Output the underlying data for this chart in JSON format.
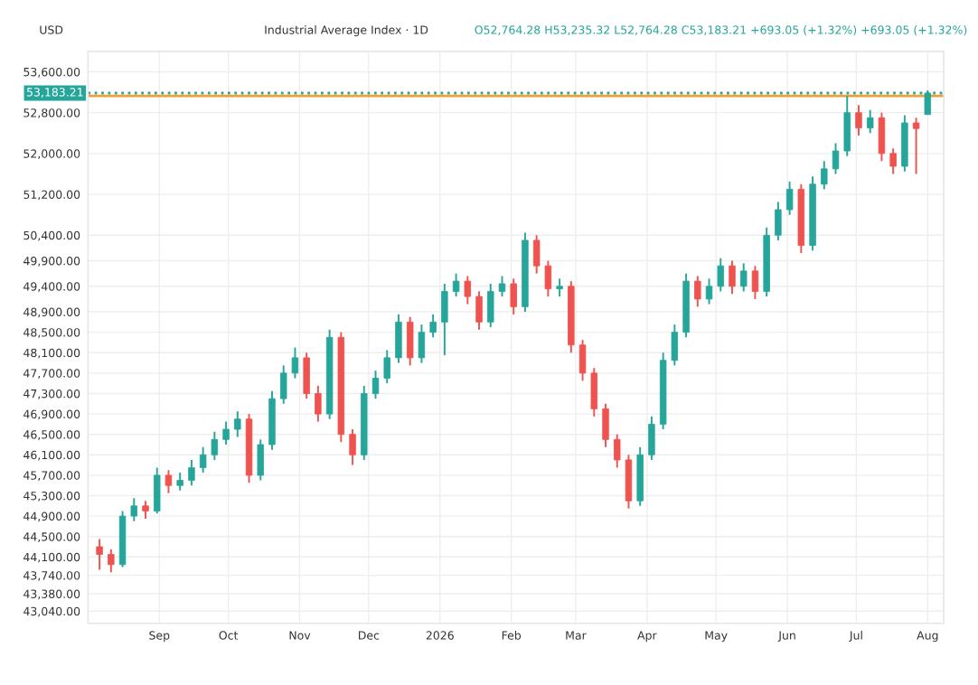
{
  "chart_data": {
    "type": "candlestick",
    "title": "Industrial Average Index · 1D",
    "subtitle": "O52,764.28 H53,235.32 L52,764.28 C53,183.21 +693.05 (+1.32%) +693.05 (+1.32%)",
    "annotations": [
      "USD"
    ],
    "x": [
      "2025-08-06",
      "2025-08-11",
      "2025-08-16",
      "2025-08-21",
      "2025-08-26",
      "2025-08-31",
      "2025-09-05",
      "2025-09-10",
      "2025-09-15",
      "2025-09-20",
      "2025-09-25",
      "2025-09-30",
      "2025-10-05",
      "2025-10-10",
      "2025-10-15",
      "2025-10-20",
      "2025-10-25",
      "2025-10-30",
      "2025-11-04",
      "2025-11-09",
      "2025-11-14",
      "2025-11-19",
      "2025-11-24",
      "2025-11-29",
      "2025-12-04",
      "2025-12-09",
      "2025-12-14",
      "2025-12-19",
      "2025-12-24",
      "2025-12-29",
      "2026-01-03",
      "2026-01-08",
      "2026-01-13",
      "2026-01-18",
      "2026-01-23",
      "2026-01-28",
      "2026-02-02",
      "2026-02-07",
      "2026-02-12",
      "2026-02-17",
      "2026-02-22",
      "2026-02-27",
      "2026-03-04",
      "2026-03-09",
      "2026-03-14",
      "2026-03-19",
      "2026-03-24",
      "2026-03-29",
      "2026-04-03",
      "2026-04-08",
      "2026-04-13",
      "2026-04-18",
      "2026-04-23",
      "2026-04-28",
      "2026-05-03",
      "2026-05-08",
      "2026-05-13",
      "2026-05-18",
      "2026-05-23",
      "2026-05-28",
      "2026-06-02",
      "2026-06-07",
      "2026-06-12",
      "2026-06-17",
      "2026-06-22",
      "2026-06-27",
      "2026-07-02",
      "2026-07-07",
      "2026-07-12",
      "2026-07-17",
      "2026-07-22",
      "2026-07-27",
      "2026-08-01"
    ],
    "ohlc": [
      [
        44300,
        44450,
        43850,
        44150
      ],
      [
        44150,
        44250,
        43800,
        43950
      ],
      [
        43950,
        45000,
        43900,
        44900
      ],
      [
        44900,
        45250,
        44800,
        45100
      ],
      [
        45100,
        45200,
        44850,
        45000
      ],
      [
        45000,
        45850,
        44950,
        45700
      ],
      [
        45700,
        45800,
        45350,
        45500
      ],
      [
        45500,
        45750,
        45400,
        45600
      ],
      [
        45600,
        46000,
        45500,
        45850
      ],
      [
        45850,
        46250,
        45750,
        46100
      ],
      [
        46100,
        46550,
        46000,
        46400
      ],
      [
        46400,
        46750,
        46300,
        46600
      ],
      [
        46600,
        46950,
        46450,
        46800
      ],
      [
        46800,
        46900,
        45550,
        45700
      ],
      [
        45700,
        46400,
        45600,
        46300
      ],
      [
        46300,
        47350,
        46200,
        47200
      ],
      [
        47200,
        47850,
        47100,
        47700
      ],
      [
        47700,
        48200,
        47600,
        48000
      ],
      [
        48000,
        48100,
        47200,
        47300
      ],
      [
        47300,
        47450,
        46750,
        46900
      ],
      [
        46900,
        48550,
        46800,
        48400
      ],
      [
        48400,
        48500,
        46350,
        46500
      ],
      [
        46500,
        46600,
        45900,
        46100
      ],
      [
        46100,
        47450,
        46000,
        47300
      ],
      [
        47300,
        47750,
        47200,
        47600
      ],
      [
        47600,
        48150,
        47500,
        48000
      ],
      [
        48000,
        48850,
        47900,
        48700
      ],
      [
        48700,
        48800,
        47850,
        48000
      ],
      [
        48000,
        48650,
        47900,
        48500
      ],
      [
        48500,
        48850,
        48400,
        48700
      ],
      [
        48700,
        49450,
        48050,
        49300
      ],
      [
        49300,
        49650,
        49200,
        49500
      ],
      [
        49500,
        49600,
        49050,
        49200
      ],
      [
        49200,
        49300,
        48550,
        48700
      ],
      [
        48700,
        49450,
        48600,
        49300
      ],
      [
        49300,
        49600,
        49200,
        49450
      ],
      [
        49450,
        49550,
        48850,
        49000
      ],
      [
        49000,
        50450,
        48900,
        50300
      ],
      [
        50300,
        50400,
        49650,
        49800
      ],
      [
        49800,
        49900,
        49200,
        49350
      ],
      [
        49350,
        49550,
        49200,
        49400
      ],
      [
        49400,
        49500,
        48100,
        48250
      ],
      [
        48250,
        48350,
        47550,
        47700
      ],
      [
        47700,
        47800,
        46850,
        47000
      ],
      [
        47000,
        47100,
        46250,
        46400
      ],
      [
        46400,
        46500,
        45850,
        46000
      ],
      [
        46000,
        46100,
        45050,
        45200
      ],
      [
        45200,
        46250,
        45100,
        46100
      ],
      [
        46100,
        46850,
        46000,
        46700
      ],
      [
        46700,
        48100,
        46600,
        47950
      ],
      [
        47950,
        48650,
        47850,
        48500
      ],
      [
        48500,
        49650,
        48400,
        49500
      ],
      [
        49500,
        49600,
        49000,
        49150
      ],
      [
        49150,
        49550,
        49050,
        49400
      ],
      [
        49400,
        49950,
        49300,
        49800
      ],
      [
        49800,
        49900,
        49250,
        49400
      ],
      [
        49400,
        49850,
        49300,
        49700
      ],
      [
        49700,
        49800,
        49150,
        49300
      ],
      [
        49300,
        50550,
        49200,
        50400
      ],
      [
        50400,
        51050,
        50300,
        50900
      ],
      [
        50900,
        51450,
        50800,
        51300
      ],
      [
        51300,
        51400,
        50050,
        50200
      ],
      [
        50200,
        51550,
        50100,
        51400
      ],
      [
        51400,
        51850,
        51300,
        51700
      ],
      [
        51700,
        52200,
        51600,
        52050
      ],
      [
        52050,
        53130,
        51950,
        52800
      ],
      [
        52800,
        52950,
        52350,
        52500
      ],
      [
        52500,
        52850,
        52400,
        52700
      ],
      [
        52700,
        52800,
        51850,
        52000
      ],
      [
        52000,
        52100,
        51600,
        51750
      ],
      [
        51750,
        52750,
        51650,
        52600
      ],
      [
        52600,
        52700,
        51600,
        52490
      ],
      [
        52764.28,
        53235.32,
        52764.28,
        53183.21
      ]
    ],
    "xlim": [
      "2025-08-01",
      "2026-08-08"
    ],
    "xticks": [
      {
        "value": "2025-09-01",
        "label": "Sep"
      },
      {
        "value": "2025-10-01",
        "label": "Oct"
      },
      {
        "value": "2025-11-01",
        "label": "Nov"
      },
      {
        "value": "2025-12-01",
        "label": "Dec"
      },
      {
        "value": "2026-01-01",
        "label": "2026"
      },
      {
        "value": "2026-02-01",
        "label": "Feb"
      },
      {
        "value": "2026-03-01",
        "label": "Mar"
      },
      {
        "value": "2026-04-01",
        "label": "Apr"
      },
      {
        "value": "2026-05-01",
        "label": "May"
      },
      {
        "value": "2026-06-01",
        "label": "Jun"
      },
      {
        "value": "2026-07-01",
        "label": "Jul"
      },
      {
        "value": "2026-08-01",
        "label": "Aug"
      }
    ],
    "ylim": [
      42800,
      54000
    ],
    "yticks": [
      {
        "value": 43040,
        "label": "43,040.00"
      },
      {
        "value": 43380,
        "label": "43,380.00"
      },
      {
        "value": 43740,
        "label": "43,740.00"
      },
      {
        "value": 44100,
        "label": "44,100.00"
      },
      {
        "value": 44500,
        "label": "44,500.00"
      },
      {
        "value": 44900,
        "label": "44,900.00"
      },
      {
        "value": 45300,
        "label": "45,300.00"
      },
      {
        "value": 45700,
        "label": "45,700.00"
      },
      {
        "value": 46100,
        "label": "46,100.00"
      },
      {
        "value": 46500,
        "label": "46,500.00"
      },
      {
        "value": 46900,
        "label": "46,900.00"
      },
      {
        "value": 47300,
        "label": "47,300.00"
      },
      {
        "value": 47700,
        "label": "47,700.00"
      },
      {
        "value": 48100,
        "label": "48,100.00"
      },
      {
        "value": 48500,
        "label": "48,500.00"
      },
      {
        "value": 48900,
        "label": "48,900.00"
      },
      {
        "value": 49400,
        "label": "49,400.00"
      },
      {
        "value": 49900,
        "label": "49,900.00"
      },
      {
        "value": 50400,
        "label": "50,400.00"
      },
      {
        "value": 51200,
        "label": "51,200.00"
      },
      {
        "value": 52000,
        "label": "52,000.00"
      },
      {
        "value": 52800,
        "label": "52,800.00"
      },
      {
        "value": 53600,
        "label": "53,600.00"
      }
    ],
    "ref_lines": [
      {
        "axis": "y",
        "value": 53183.21,
        "label": "53,183.21",
        "color": "#26a69a",
        "line_style": "dotted"
      },
      {
        "axis": "y",
        "value": 53130,
        "color": "#f0a030",
        "line_style": "solid"
      }
    ],
    "grid": true
  }
}
